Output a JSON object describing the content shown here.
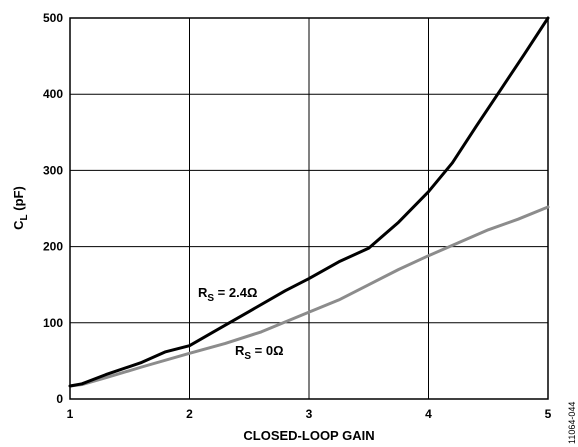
{
  "chart_data": {
    "type": "line",
    "xlabel": "CLOSED-LOOP GAIN",
    "ylabel_main": "C",
    "ylabel_sub": "L",
    "ylabel_unit": " (pF)",
    "xlim": [
      1,
      5
    ],
    "ylim": [
      0,
      500
    ],
    "x_ticks": [
      1,
      2,
      3,
      4,
      5
    ],
    "y_ticks": [
      0,
      100,
      200,
      300,
      400,
      500
    ],
    "grid": true,
    "series": [
      {
        "label_main": "R",
        "label_sub": "S",
        "label_value": " = 2.4Ω",
        "color": "#000000",
        "x": [
          1.0,
          1.1,
          1.3,
          1.6,
          1.8,
          2.0,
          2.2,
          2.5,
          2.8,
          3.0,
          3.25,
          3.5,
          3.75,
          4.0,
          4.2,
          4.4,
          4.6,
          4.8,
          5.0
        ],
        "y": [
          17,
          20,
          32,
          48,
          62,
          70,
          88,
          115,
          142,
          158,
          180,
          198,
          232,
          272,
          310,
          358,
          405,
          452,
          500
        ]
      },
      {
        "label_main": "R",
        "label_sub": "S",
        "label_value": " = 0Ω",
        "color": "#8c8c8c",
        "x": [
          1.0,
          1.1,
          1.3,
          1.6,
          2.0,
          2.3,
          2.6,
          3.0,
          3.25,
          3.5,
          3.75,
          4.0,
          4.25,
          4.5,
          4.75,
          5.0
        ],
        "y": [
          17,
          19,
          28,
          42,
          60,
          73,
          88,
          114,
          130,
          150,
          170,
          188,
          205,
          222,
          236,
          252
        ]
      }
    ]
  },
  "figure_id": "11064-044"
}
